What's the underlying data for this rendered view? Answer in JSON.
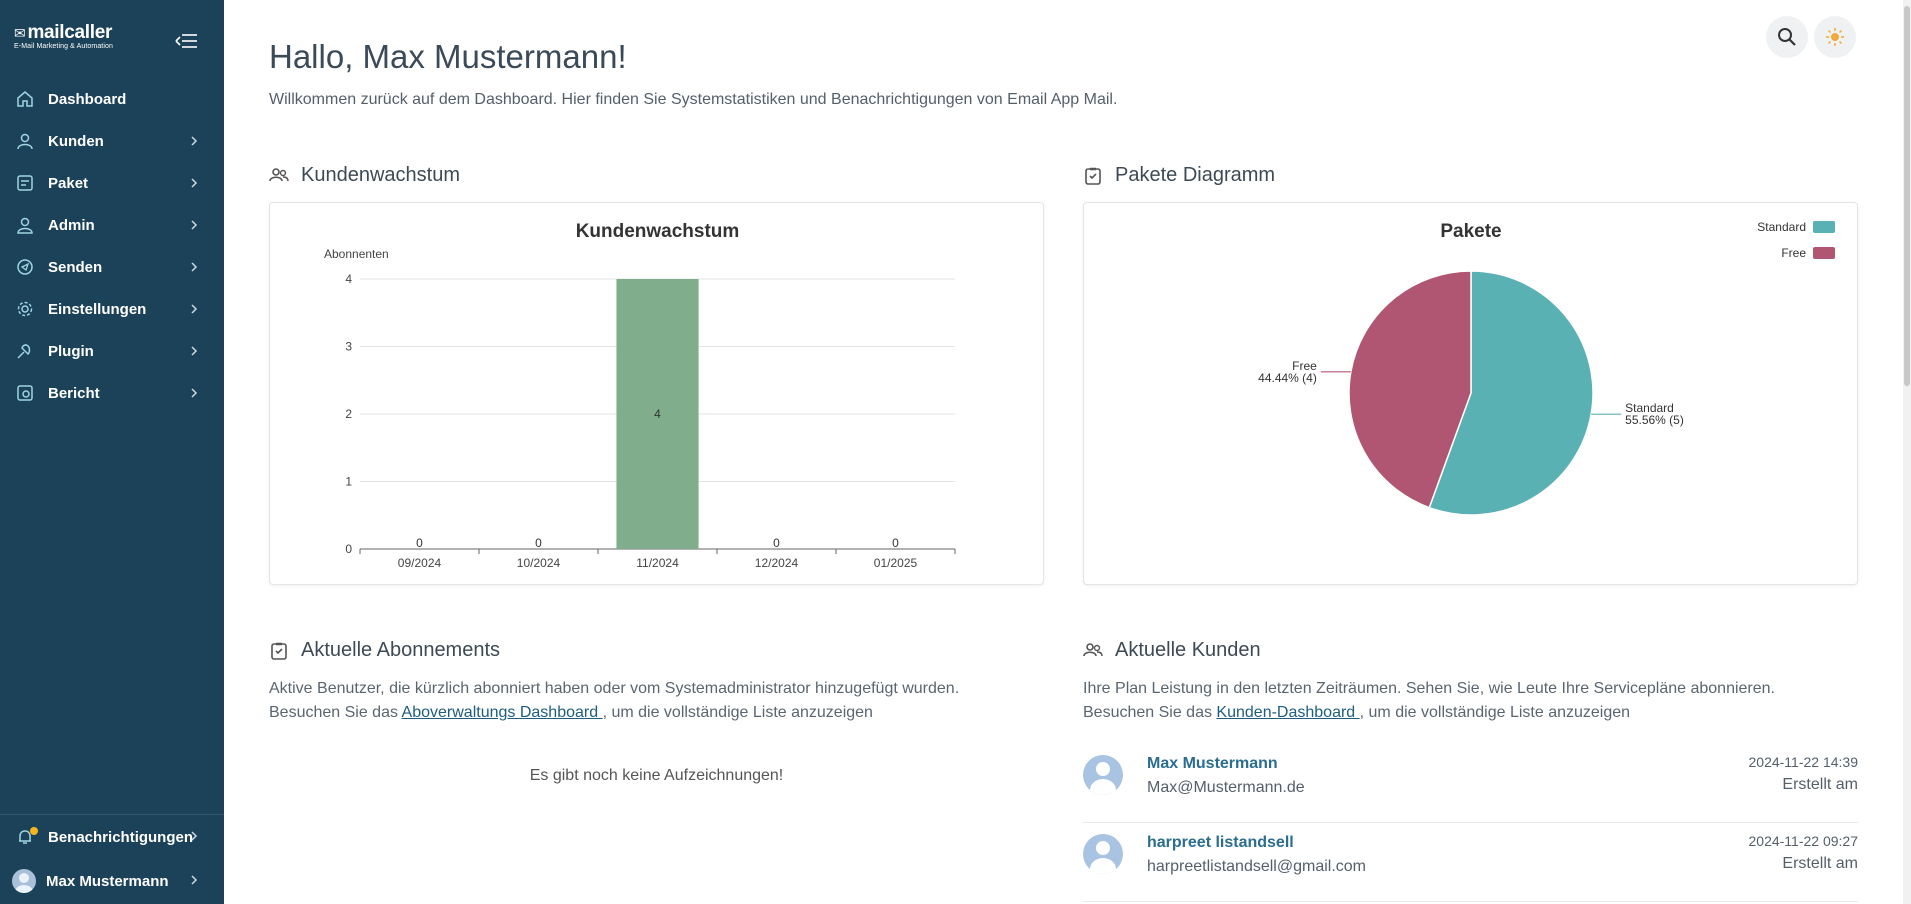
{
  "brand": {
    "name": "mailcaller",
    "tagline": "E-Mail Marketing & Automation"
  },
  "sidebar": {
    "items": [
      {
        "label": "Dashboard",
        "icon": "home-icon"
      },
      {
        "label": "Kunden",
        "icon": "user-icon"
      },
      {
        "label": "Paket",
        "icon": "package-icon"
      },
      {
        "label": "Admin",
        "icon": "admin-icon"
      },
      {
        "label": "Senden",
        "icon": "send-icon"
      },
      {
        "label": "Einstellungen",
        "icon": "gear-icon"
      },
      {
        "label": "Plugin",
        "icon": "plugin-icon"
      },
      {
        "label": "Bericht",
        "icon": "report-icon"
      }
    ],
    "notifications_label": "Benachrichtigungen",
    "user_label": "Max Mustermann"
  },
  "header": {
    "greeting": "Hallo, Max Mustermann!",
    "welcome": "Willkommen zurück auf dem Dashboard. Hier finden Sie Systemstatistiken und Benachrichtigungen von Email App Mail."
  },
  "sections": {
    "growth_title": "Kundenwachstum",
    "packages_title": "Pakete Diagramm",
    "subs_title": "Aktuelle Abonnements",
    "subs_desc_1": "Aktive Benutzer, die kürzlich abonniert haben oder vom Systemadministrator hinzugefügt wurden.",
    "subs_desc_2a": "Besuchen Sie das ",
    "subs_link": "Aboverwaltungs Dashboard ",
    "subs_desc_2b": ", um die vollständige Liste anzuzeigen",
    "subs_empty": "Es gibt noch keine Aufzeichnungen!",
    "cust_title": "Aktuelle Kunden",
    "cust_desc_1": "Ihre Plan Leistung in den letzten Zeiträumen. Sehen Sie, wie Leute Ihre Servicepläne abonnieren.",
    "cust_desc_2a": "Besuchen Sie das ",
    "cust_link": "Kunden-Dashboard ",
    "cust_desc_2b": ", um die vollständige Liste anzuzeigen"
  },
  "customers": [
    {
      "name": "Max Mustermann",
      "email": "Max@Mustermann.de",
      "timestamp": "2024-11-22 14:39",
      "created_label": "Erstellt am"
    },
    {
      "name": "harpreet listandsell",
      "email": "harpreetlistandsell@gmail.com",
      "timestamp": "2024-11-22 09:27",
      "created_label": "Erstellt am"
    }
  ],
  "chart_data": [
    {
      "type": "bar",
      "title": "Kundenwachstum",
      "ylabel": "Abonnenten",
      "categories": [
        "09/2024",
        "10/2024",
        "11/2024",
        "12/2024",
        "01/2025"
      ],
      "values": [
        0,
        0,
        4,
        0,
        0
      ],
      "yticks": [
        0,
        1,
        2,
        3,
        4
      ],
      "ylim": [
        0,
        4
      ],
      "color": "#80ae8c",
      "grid": true
    },
    {
      "type": "pie",
      "title": "Pakete",
      "slices": [
        {
          "name": "Standard",
          "value": 5,
          "label": "55.56% (5)",
          "color": "#5ab1b4"
        },
        {
          "name": "Free",
          "value": 4,
          "label": "44.44% (4)",
          "color": "#b05672"
        }
      ],
      "legend": "top-right"
    }
  ]
}
